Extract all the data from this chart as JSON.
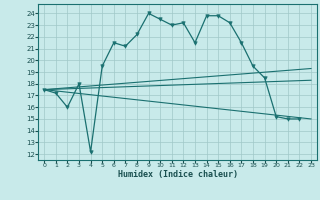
{
  "title": "",
  "xlabel": "Humidex (Indice chaleur)",
  "bg_color": "#c8eaea",
  "grid_color": "#a0c8c8",
  "line_color": "#1a7070",
  "xlim": [
    -0.5,
    23.5
  ],
  "ylim": [
    11.5,
    24.8
  ],
  "yticks": [
    12,
    13,
    14,
    15,
    16,
    17,
    18,
    19,
    20,
    21,
    22,
    23,
    24
  ],
  "xticks": [
    0,
    1,
    2,
    3,
    4,
    5,
    6,
    7,
    8,
    9,
    10,
    11,
    12,
    13,
    14,
    15,
    16,
    17,
    18,
    19,
    20,
    21,
    22,
    23
  ],
  "main_series": {
    "x": [
      0,
      1,
      2,
      3,
      4,
      5,
      6,
      7,
      8,
      9,
      10,
      11,
      12,
      13,
      14,
      15,
      16,
      17,
      18,
      19,
      20,
      21,
      22
    ],
    "y": [
      17.5,
      17.2,
      16.0,
      18.0,
      12.2,
      19.5,
      21.5,
      21.2,
      22.2,
      24.0,
      23.5,
      23.0,
      23.2,
      21.5,
      23.8,
      23.8,
      23.2,
      21.5,
      19.5,
      18.5,
      15.2,
      15.0,
      15.0
    ]
  },
  "trend_lines": [
    {
      "x": [
        0,
        23
      ],
      "y": [
        17.5,
        19.3
      ]
    },
    {
      "x": [
        0,
        23
      ],
      "y": [
        17.5,
        18.3
      ]
    },
    {
      "x": [
        0,
        23
      ],
      "y": [
        17.5,
        15.0
      ]
    }
  ]
}
